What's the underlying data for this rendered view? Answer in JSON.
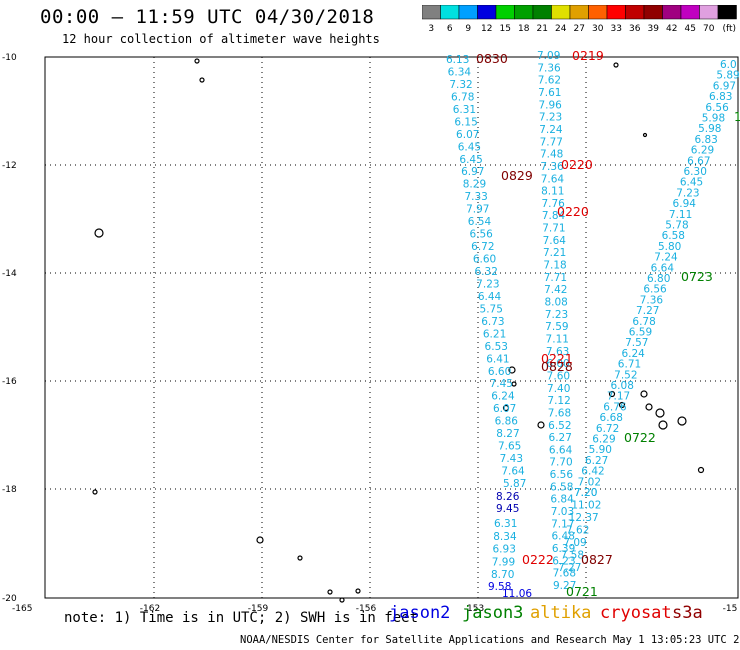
{
  "title": "00:00 – 11:59 UTC 04/30/2018",
  "subtitle": "12 hour collection of altimeter wave heights",
  "colorbar": {
    "colors": [
      "#808080",
      "#00e0e0",
      "#00a0ff",
      "#0000e0",
      "#00d000",
      "#00a000",
      "#008000",
      "#e0e000",
      "#e0a000",
      "#ff6000",
      "#ff0000",
      "#c00000",
      "#900000",
      "#a00080",
      "#c000c0",
      "#e0a0e0",
      "#000000"
    ],
    "labels": [
      "3",
      "6",
      "9",
      "12",
      "15",
      "18",
      "21",
      "24",
      "27",
      "30",
      "33",
      "36",
      "39",
      "42",
      "45",
      "70",
      "(ft)"
    ]
  },
  "map": {
    "lon_ticks": [
      "-165",
      "-162",
      "-159",
      "-156",
      "-153",
      "-15"
    ],
    "lat_ticks": [
      "-10",
      "-12",
      "-14",
      "-16",
      "-18",
      "-20"
    ]
  },
  "tracks": {
    "a": {
      "color": "#1ab0e0",
      "values": [
        "6.13",
        "6.34",
        "7.32",
        "6.78",
        "6.31",
        "6.15",
        "6.07",
        "6.45",
        "6.45",
        "6.97",
        "8.29",
        "7.33",
        "7.97",
        "6.54",
        "6.56",
        "6.72",
        "6.60",
        "6.32",
        "7.23",
        "6.44",
        "5.75",
        "6.73",
        "6.21",
        "6.53",
        "6.41",
        "6.60",
        "7.45",
        "6.24",
        "6.07",
        "6.86",
        "8.27",
        "7.65",
        "7.43",
        "7.64",
        "5.87"
      ]
    },
    "a_dark": {
      "color": "#0000b0",
      "values": [
        "8.26",
        "9.45"
      ]
    },
    "a2": {
      "color": "#1ab0e0",
      "values": [
        "6.31",
        "8.34",
        "6.93",
        "7.99",
        "8.70"
      ]
    },
    "a3": {
      "color": "#0000e0",
      "values": [
        "9.58"
      ]
    },
    "b": {
      "color": "#1ab0e0",
      "values": [
        "7.09",
        "7.36",
        "7.62",
        "7.61",
        "7.96",
        "7.23",
        "7.24",
        "7.77",
        "7.48",
        "7.36",
        "7.64",
        "8.11",
        "7.76",
        "7.84",
        "7.71",
        "7.64",
        "7.21",
        "7.18",
        "7.71",
        "7.42",
        "8.08",
        "7.23",
        "7.59",
        "7.11",
        "7.63",
        "6.00",
        "7.60",
        "7.40",
        "7.12",
        "7.68",
        "6.52",
        "6.27",
        "6.64",
        "7.70",
        "6.56",
        "6.58",
        "6.84",
        "7.03",
        "7.17",
        "6.48",
        "6.39",
        "6.23",
        "7.68",
        "9.27"
      ]
    },
    "b2": {
      "color": "#1ab0e0",
      "values": [
        "7.20",
        "11.02",
        "12.37",
        "7.62",
        "7.09",
        "7.58",
        "7.27"
      ]
    },
    "b3": {
      "color": "#0000e0",
      "values": [
        "11.06"
      ]
    },
    "c": {
      "color": "#1ab0e0",
      "values": [
        "6.0",
        "5.89",
        "6.97",
        "6.83",
        "6.56",
        "5.98",
        "5.98",
        "6.83",
        "6.29",
        "6.67",
        "6.30",
        "6.45",
        "7.23",
        "6.94",
        "7.11",
        "5.78",
        "6.58",
        "5.80",
        "7.24",
        "6.64",
        "6.80",
        "6.56",
        "7.36",
        "7.27",
        "6.78",
        "6.59",
        "7.57",
        "6.24",
        "6.71",
        "7.52",
        "6.08",
        "7.17",
        "6.76",
        "6.68",
        "6.72",
        "6.29",
        "5.90",
        "6.27",
        "6.42",
        "7.02",
        "7.20"
      ]
    },
    "c_green": {
      "color": "#008000",
      "values": [
        "1"
      ]
    }
  },
  "time_labels": [
    {
      "text": "0830",
      "color": "#800000"
    },
    {
      "text": "0219",
      "color": "#e00000"
    },
    {
      "text": "0829",
      "color": "#800000"
    },
    {
      "text": "0220",
      "color": "#e00000"
    },
    {
      "text": "0220",
      "color": "#e00000"
    },
    {
      "text": "0723",
      "color": "#008000"
    },
    {
      "text": "0221",
      "color": "#e00000"
    },
    {
      "text": "0828",
      "color": "#800000"
    },
    {
      "text": "0722",
      "color": "#008000"
    },
    {
      "text": "0222",
      "color": "#e00000"
    },
    {
      "text": "0827",
      "color": "#800000"
    },
    {
      "text": "0721",
      "color": "#008000"
    }
  ],
  "legend": [
    {
      "name": "jason2",
      "color": "#0000e0"
    },
    {
      "name": "jason3",
      "color": "#008000"
    },
    {
      "name": "altika",
      "color": "#e0a000"
    },
    {
      "name": "cryosat",
      "color": "#e00000"
    },
    {
      "name": "s3a",
      "color": "#900000"
    }
  ],
  "note": "note: 1) Time is in UTC; 2) SWH is in feet",
  "footer": "NOAA/NESDIS Center for Satellite Applications and Research   May  1 13:05:23 UTC 2018"
}
